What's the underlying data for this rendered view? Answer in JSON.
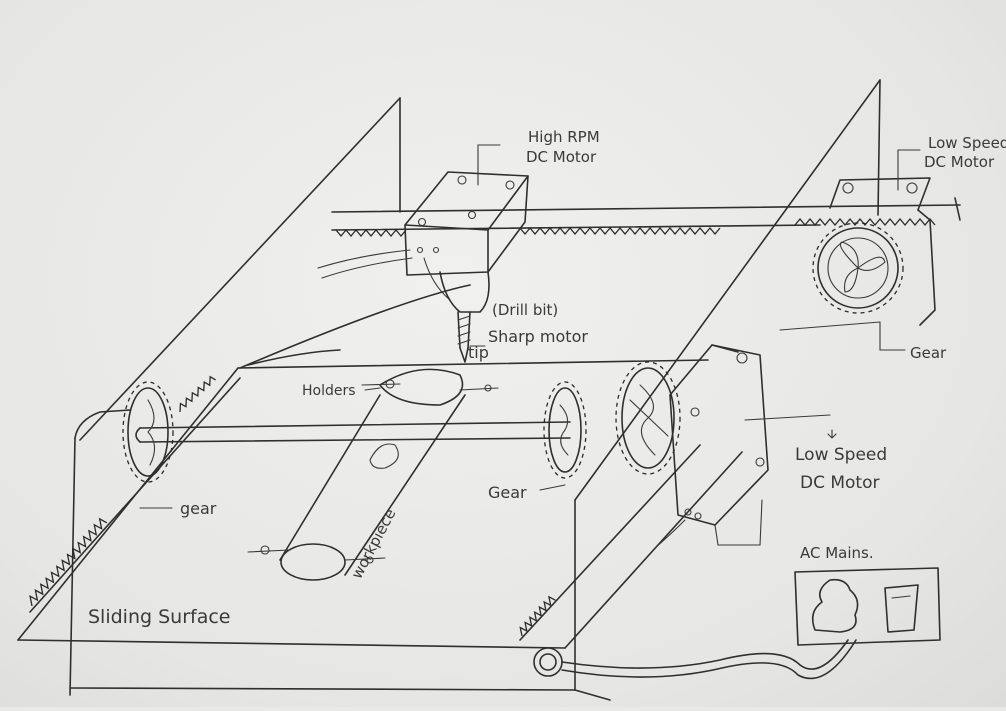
{
  "diagram": {
    "labels": {
      "high_rpm_motor": [
        "High RPM",
        "DC Motor"
      ],
      "low_speed_motor_top": [
        "Low Speed",
        "DC Motor"
      ],
      "drill_bit": "(Drill bit)",
      "sharp_motor_tip": [
        "Sharp motor",
        "tip"
      ],
      "holders": "Holders",
      "gear_right_top": "Gear",
      "low_speed_motor_right": [
        "Low Speed",
        "DC Motor"
      ],
      "gear_center": "Gear",
      "gear_left": "gear",
      "workpiece": "workpiece",
      "ac_mains": "AC Mains.",
      "sliding_surface": "Sliding Surface"
    }
  }
}
